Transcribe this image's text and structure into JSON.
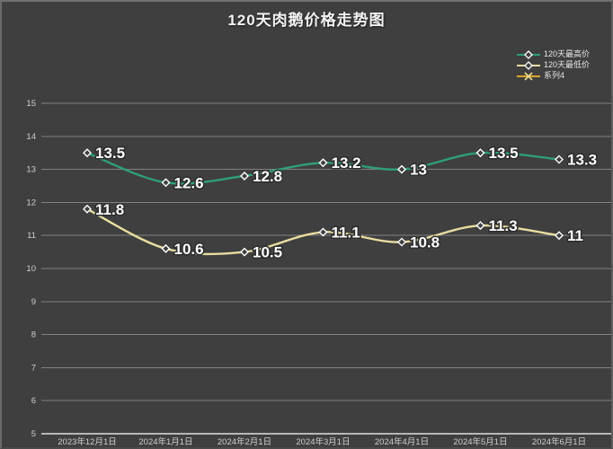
{
  "title": "120天肉鹅价格走势图",
  "colors": {
    "background": "#3f3f3f",
    "grid": "#828282",
    "axis": "#b8b8b8",
    "tick_text": "#cfcfcf",
    "data_label": "#ffffff",
    "series_high": "#2f9e77",
    "series_low": "#e9dda0",
    "series4": "#d8a82a"
  },
  "legend": {
    "position": "top-right",
    "items": [
      {
        "name": "120天最高价",
        "color": "#2f9e77",
        "marker": "diamond"
      },
      {
        "name": "120天最低价",
        "color": "#e9dda0",
        "marker": "diamond"
      },
      {
        "name": "系列4",
        "color": "#d8a82a",
        "marker": "x"
      }
    ]
  },
  "chart_data": {
    "type": "line",
    "title": "120天肉鹅价格走势图",
    "categories": [
      "2023年12月1日",
      "2024年1月1日",
      "2024年2月1日",
      "2024年3月1日",
      "2024年4月1日",
      "2024年5月1日",
      "2024年6月1日"
    ],
    "series": [
      {
        "name": "120天最高价",
        "color": "#2f9e77",
        "marker": "diamond",
        "values": [
          13.5,
          12.6,
          12.8,
          13.2,
          13,
          13.5,
          13.3
        ]
      },
      {
        "name": "120天最低价",
        "color": "#e9dda0",
        "marker": "diamond",
        "values": [
          11.8,
          10.6,
          10.5,
          11.1,
          10.8,
          11.3,
          11
        ]
      },
      {
        "name": "系列4",
        "color": "#d8a82a",
        "marker": "x",
        "values": []
      }
    ],
    "xlabel": "",
    "ylabel": "",
    "ylim": [
      5,
      15
    ],
    "yticks": [
      5,
      6,
      7,
      8,
      9,
      10,
      11,
      12,
      13,
      14,
      15
    ],
    "grid": true,
    "legend_position": "top-right",
    "data_labels": true
  }
}
